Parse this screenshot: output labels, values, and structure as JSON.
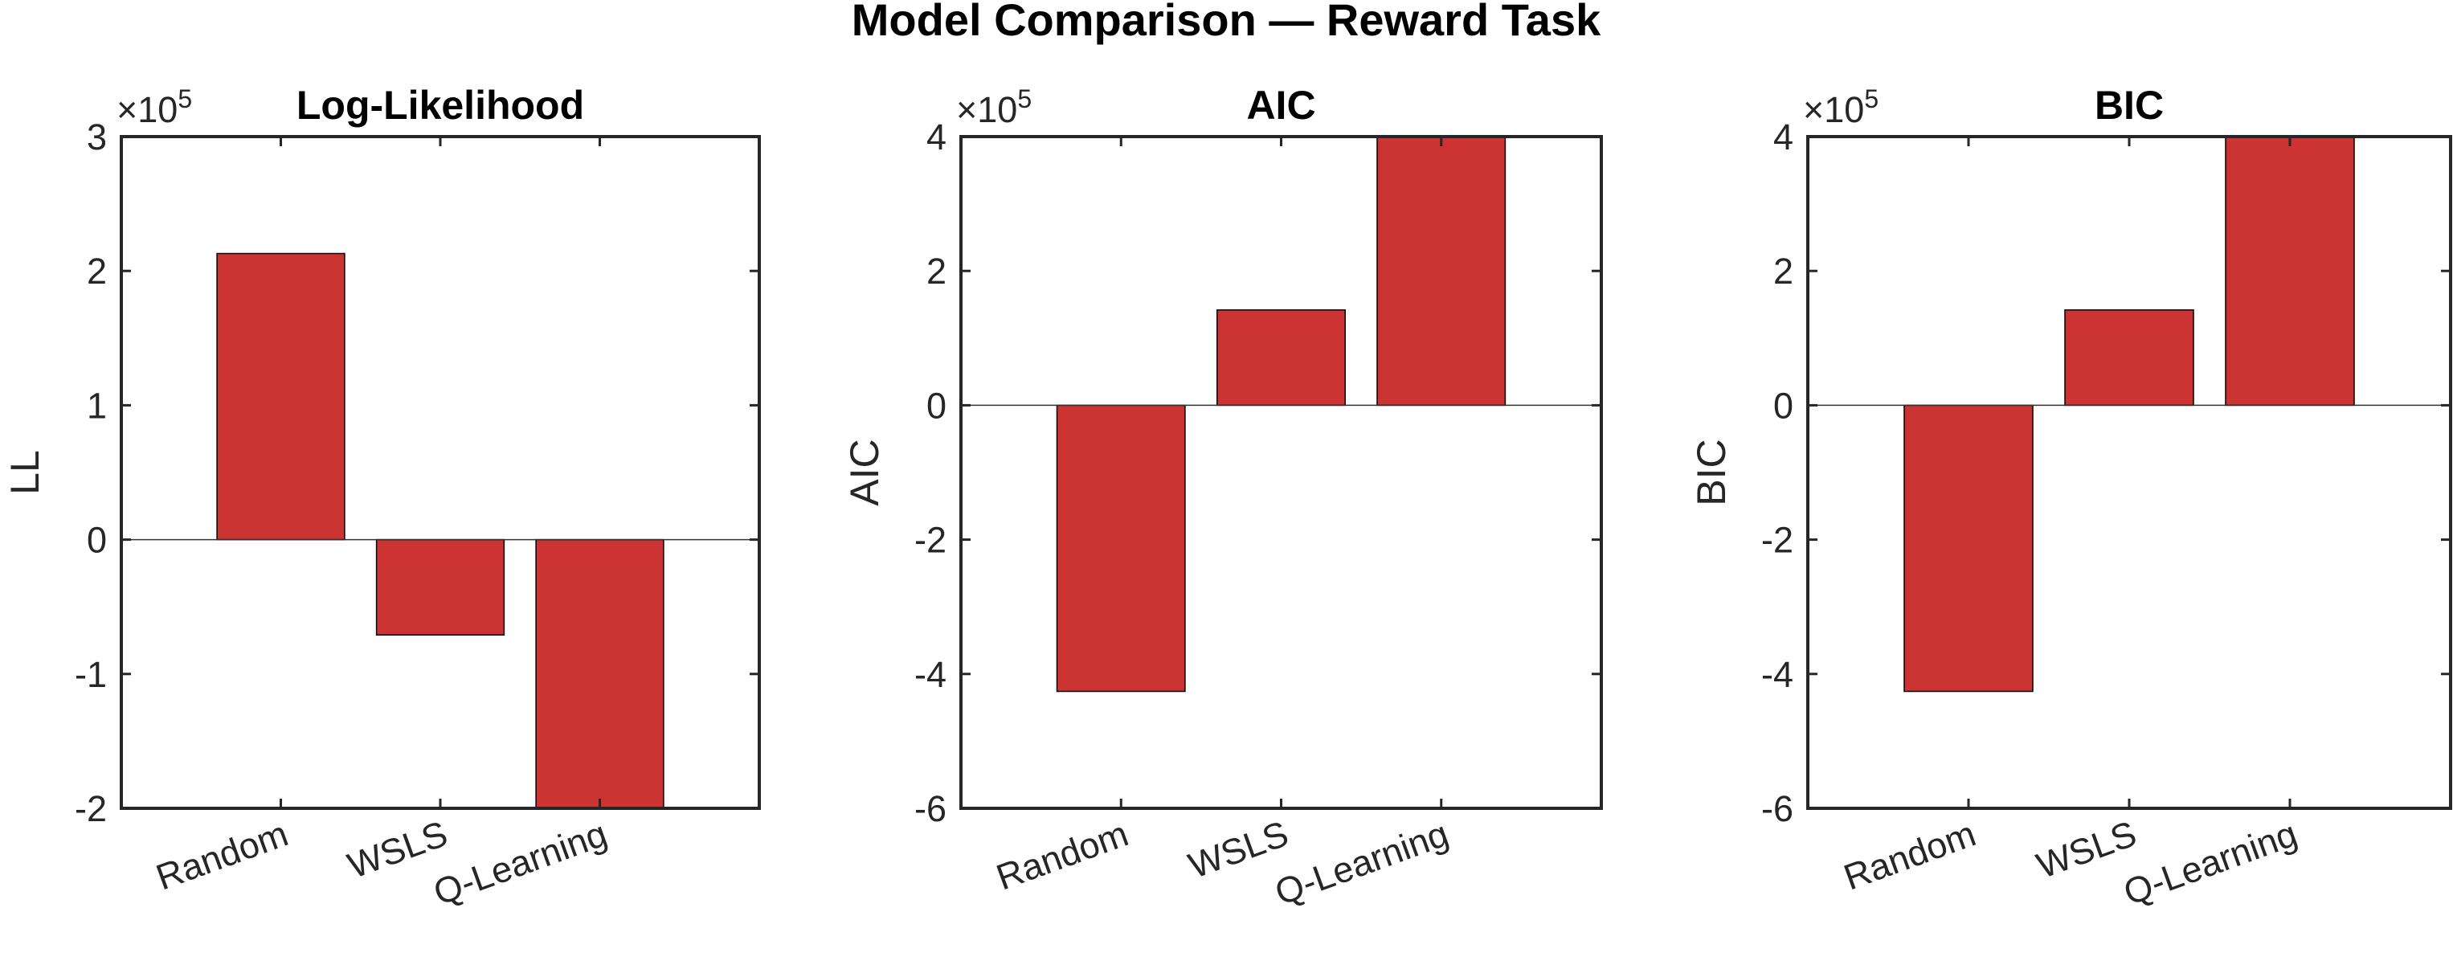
{
  "figure": {
    "title": "Model Comparison — Reward Task",
    "colors": {
      "bar_fill": "#CC3333",
      "bar_edge": "#000000",
      "axes": "#262626",
      "background": "#ffffff"
    }
  },
  "chart_data": [
    {
      "type": "bar",
      "title": "Log-Likelihood",
      "ylabel": "LL",
      "xlabel": "",
      "exponent_label": "×10",
      "exponent_power": "5",
      "categories": [
        "Random",
        "WSLS",
        "Q-Learning"
      ],
      "values": [
        213000,
        -71000,
        -200000
      ],
      "ylim": [
        -200000,
        300000
      ],
      "yticks": [
        -200000,
        -100000,
        0,
        100000,
        200000,
        300000
      ],
      "ytick_labels": [
        "-2",
        "-1",
        "0",
        "1",
        "2",
        "3"
      ],
      "grid": false,
      "legend": "none"
    },
    {
      "type": "bar",
      "title": "AIC",
      "ylabel": "AIC",
      "xlabel": "",
      "exponent_label": "×10",
      "exponent_power": "5",
      "categories": [
        "Random",
        "WSLS",
        "Q-Learning"
      ],
      "values": [
        -426000,
        142000,
        400000
      ],
      "ylim": [
        -600000,
        400000
      ],
      "yticks": [
        -600000,
        -400000,
        -200000,
        0,
        200000,
        400000
      ],
      "ytick_labels": [
        "-6",
        "-4",
        "-2",
        "0",
        "2",
        "4"
      ],
      "grid": false,
      "legend": "none"
    },
    {
      "type": "bar",
      "title": "BIC",
      "ylabel": "BIC",
      "xlabel": "",
      "exponent_label": "×10",
      "exponent_power": "5",
      "categories": [
        "Random",
        "WSLS",
        "Q-Learning"
      ],
      "values": [
        -426000,
        142000,
        400000
      ],
      "ylim": [
        -600000,
        400000
      ],
      "yticks": [
        -600000,
        -400000,
        -200000,
        0,
        200000,
        400000
      ],
      "ytick_labels": [
        "-6",
        "-4",
        "-2",
        "0",
        "2",
        "4"
      ],
      "grid": false,
      "legend": "none"
    }
  ]
}
